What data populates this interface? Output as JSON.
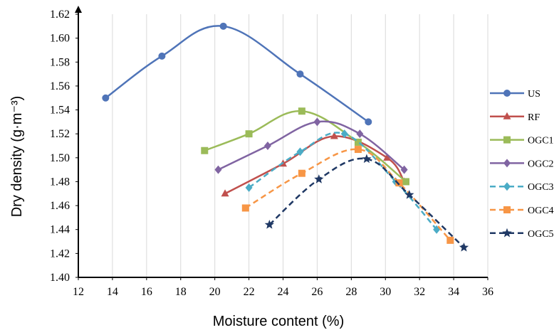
{
  "chart_data": {
    "type": "line",
    "xlabel": "Moisture content (%)",
    "ylabel": "Dry density (g·m⁻³)",
    "xlim": [
      12,
      36
    ],
    "ylim": [
      1.4,
      1.62
    ],
    "xticks": [
      "12",
      "14",
      "16",
      "18",
      "20",
      "22",
      "24",
      "26",
      "28",
      "30",
      "32",
      "34",
      "36"
    ],
    "yticks": [
      "1.40",
      "1.42",
      "1.44",
      "1.46",
      "1.48",
      "1.50",
      "1.52",
      "1.54",
      "1.56",
      "1.58",
      "1.60",
      "1.62"
    ],
    "grid": "vertical",
    "legend_position": "right",
    "series": [
      {
        "name": "US",
        "color": "#4f74b8",
        "dash": "solid",
        "marker": "circle",
        "points": [
          [
            13.6,
            1.55
          ],
          [
            16.9,
            1.585
          ],
          [
            20.5,
            1.61
          ],
          [
            25.0,
            1.57
          ],
          [
            29.0,
            1.53
          ]
        ]
      },
      {
        "name": "RF",
        "color": "#c0504d",
        "dash": "solid",
        "marker": "triangle",
        "points": [
          [
            20.6,
            1.47
          ],
          [
            24.0,
            1.495
          ],
          [
            27.0,
            1.518
          ],
          [
            30.1,
            1.5
          ],
          [
            31.1,
            1.48
          ]
        ]
      },
      {
        "name": "OGC1",
        "color": "#9bbb59",
        "dash": "solid",
        "marker": "square",
        "points": [
          [
            19.4,
            1.506
          ],
          [
            22.0,
            1.52
          ],
          [
            25.1,
            1.539
          ],
          [
            28.4,
            1.513
          ],
          [
            31.2,
            1.48
          ]
        ]
      },
      {
        "name": "OGC2",
        "color": "#8064a2",
        "dash": "solid",
        "marker": "diamond",
        "points": [
          [
            20.2,
            1.49
          ],
          [
            23.1,
            1.51
          ],
          [
            26.0,
            1.53
          ],
          [
            28.5,
            1.52
          ],
          [
            31.1,
            1.49
          ]
        ]
      },
      {
        "name": "OGC3",
        "color": "#4bacc6",
        "dash": "dash",
        "marker": "diamond",
        "points": [
          [
            22.0,
            1.475
          ],
          [
            25.0,
            1.505
          ],
          [
            27.6,
            1.52
          ],
          [
            30.6,
            1.48
          ],
          [
            33.0,
            1.44
          ]
        ]
      },
      {
        "name": "OGC4",
        "color": "#f79646",
        "dash": "dash",
        "marker": "square",
        "points": [
          [
            21.8,
            1.458
          ],
          [
            25.1,
            1.487
          ],
          [
            28.4,
            1.507
          ],
          [
            30.8,
            1.479
          ],
          [
            33.8,
            1.431
          ]
        ]
      },
      {
        "name": "OGC5",
        "color": "#1f3864",
        "dash": "dash",
        "marker": "star",
        "points": [
          [
            23.2,
            1.444
          ],
          [
            26.1,
            1.482
          ],
          [
            28.9,
            1.499
          ],
          [
            31.4,
            1.469
          ],
          [
            34.6,
            1.425
          ]
        ]
      }
    ]
  }
}
